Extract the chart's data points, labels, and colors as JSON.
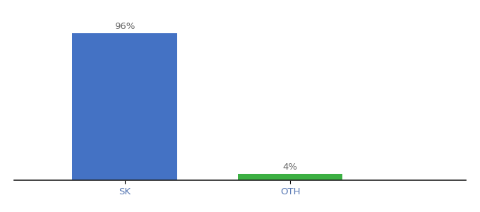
{
  "categories": [
    "SK",
    "OTH"
  ],
  "values": [
    96,
    4
  ],
  "bar_colors": [
    "#4472c4",
    "#3cb043"
  ],
  "bar_labels": [
    "96%",
    "4%"
  ],
  "background_color": "#ffffff",
  "ylim": [
    0,
    108
  ],
  "bar_width": 0.55,
  "label_fontsize": 9.5,
  "tick_fontsize": 9.5,
  "tick_color": "#5a7ab5",
  "label_color": "#666666"
}
